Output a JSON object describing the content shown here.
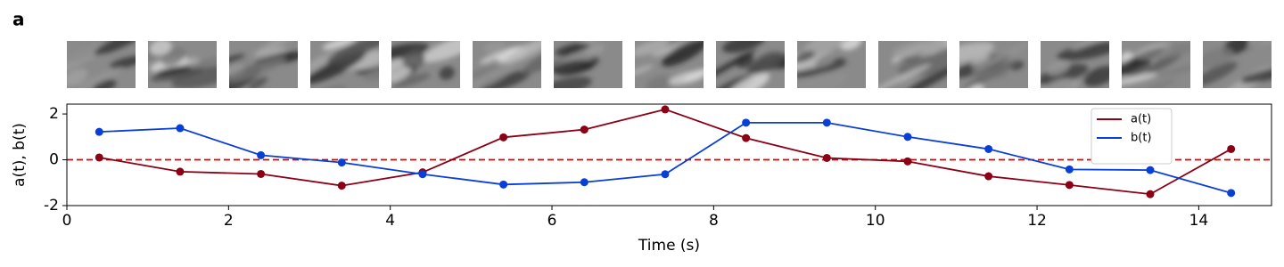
{
  "chart_data": {
    "type": "line",
    "panel_label": "a",
    "x_label": "Time (s)",
    "y_label": "a(t), b(t)",
    "x": [
      0.4,
      1.4,
      2.4,
      3.4,
      4.4,
      5.4,
      6.4,
      7.4,
      8.4,
      9.4,
      10.4,
      11.4,
      12.4,
      13.4,
      14.4
    ],
    "series": [
      {
        "name": "a(t)",
        "color": "#8b0015",
        "values": [
          0.1,
          -0.52,
          -0.62,
          -1.13,
          -0.55,
          0.98,
          1.32,
          2.2,
          0.95,
          0.08,
          -0.07,
          -0.72,
          -1.1,
          -1.5,
          0.47
        ]
      },
      {
        "name": "b(t)",
        "color": "#0a3fd6",
        "values": [
          1.22,
          1.38,
          0.2,
          -0.12,
          -0.63,
          -1.08,
          -0.98,
          -0.63,
          1.62,
          1.62,
          1.0,
          0.47,
          -0.42,
          -0.45,
          -1.45
        ]
      }
    ],
    "reference_line": {
      "value": 0,
      "color": "#e00000"
    },
    "xlim": [
      0,
      14.9
    ],
    "ylim": [
      -2,
      2.43
    ],
    "xticks": [
      0,
      2,
      4,
      6,
      8,
      10,
      12,
      14
    ],
    "yticks": [
      -2,
      0,
      2
    ],
    "legend": "upper right"
  }
}
